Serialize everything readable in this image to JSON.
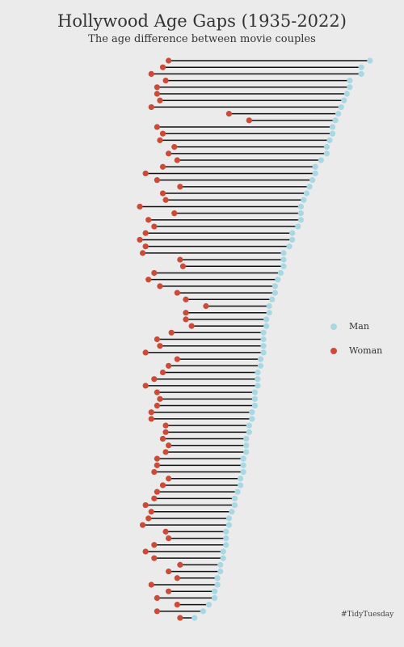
{
  "title": "Hollywood Age Gaps (1935-2022)",
  "subtitle": "The age difference between movie couples",
  "caption": "#TidyTuesday",
  "legend": [
    {
      "label": "Man",
      "color": "#a8d8e4"
    },
    {
      "label": "Woman",
      "color": "#cc4b37"
    }
  ],
  "chart_data": {
    "type": "dumbbell",
    "title": "Hollywood Age Gaps (1935-2022)",
    "subtitle": "The age difference between movie couples",
    "xlabel": "",
    "ylabel": "",
    "grid": false,
    "legend_position": "right",
    "series": [
      {
        "name": "Man",
        "values": [
          64,
          61,
          61,
          57,
          57,
          56,
          55,
          54,
          53,
          52,
          51,
          51,
          50,
          49,
          49,
          47,
          45,
          45,
          44,
          43,
          42,
          41,
          40,
          40,
          40,
          39,
          37,
          37,
          36,
          34,
          34,
          34,
          33,
          32,
          31,
          31,
          30,
          29,
          29,
          28,
          28,
          27,
          27,
          27,
          27,
          26,
          26,
          25,
          25,
          25,
          24,
          24,
          24,
          23,
          23,
          22,
          22,
          21,
          21,
          21,
          20,
          20,
          20,
          19,
          19,
          18,
          17,
          17,
          16,
          15,
          15,
          14,
          14,
          14,
          13,
          13,
          12,
          12,
          11,
          11,
          10,
          10,
          8,
          6,
          3
        ]
      },
      {
        "name": "Woman",
        "values": [
          -6,
          -8,
          -12,
          -7,
          -10,
          -10,
          -9,
          -12,
          15,
          22,
          -10,
          -8,
          -9,
          -4,
          -6,
          -3,
          -8,
          -14,
          -10,
          -2,
          -8,
          -7,
          -16,
          -4,
          -13,
          -11,
          -14,
          -16,
          -14,
          -15,
          -2,
          -1,
          -11,
          -13,
          -9,
          -3,
          0,
          7,
          0,
          0,
          2,
          -5,
          -10,
          -9,
          -14,
          -3,
          -6,
          -8,
          -11,
          -14,
          -10,
          -9,
          -10,
          -12,
          -12,
          -7,
          -7,
          -8,
          -6,
          -7,
          -10,
          -10,
          -11,
          -6,
          -8,
          -10,
          -11,
          -14,
          -12,
          -13,
          -15,
          -7,
          -6,
          -11,
          -14,
          -11,
          -2,
          -6,
          -3,
          -12,
          -6,
          -10,
          -3,
          -10,
          -2
        ]
      }
    ]
  }
}
